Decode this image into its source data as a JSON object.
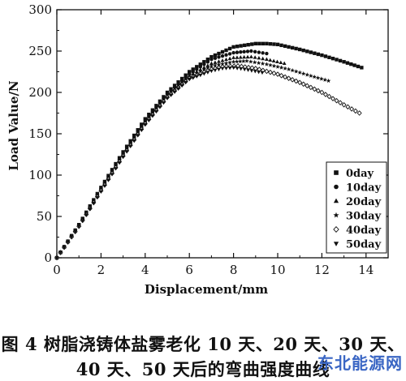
{
  "chart_data": {
    "type": "scatter",
    "xlabel": "Displacement/mm",
    "ylabel": "Load Value/N",
    "xlim": [
      0,
      15
    ],
    "ylim": [
      0,
      300
    ],
    "xticks": [
      0,
      2,
      4,
      6,
      8,
      10,
      12,
      14
    ],
    "yticks": [
      0,
      50,
      100,
      150,
      200,
      250,
      300
    ],
    "legend_position": "bottom-right",
    "grid": false,
    "series": [
      {
        "name": "0day",
        "marker": "square",
        "x": [
          0,
          1,
          2,
          3,
          4,
          5,
          6,
          7,
          8,
          9,
          9.5,
          10,
          11,
          12,
          13,
          13.8
        ],
        "y": [
          0,
          40,
          85,
          128,
          168,
          200,
          225,
          243,
          255,
          259,
          259,
          258,
          252,
          245,
          237,
          230
        ]
      },
      {
        "name": "10day",
        "marker": "circle",
        "x": [
          0,
          1,
          2,
          3,
          4,
          5,
          6,
          7,
          8,
          8.8,
          9.5
        ],
        "y": [
          0,
          40,
          84,
          126,
          165,
          198,
          222,
          240,
          248,
          250,
          247
        ]
      },
      {
        "name": "20day",
        "marker": "triangle-up",
        "x": [
          0,
          1,
          2,
          3,
          4,
          5,
          6,
          7,
          8,
          8.8,
          9.5,
          10.3
        ],
        "y": [
          0,
          39,
          83,
          125,
          164,
          196,
          220,
          235,
          242,
          243,
          240,
          235
        ]
      },
      {
        "name": "30day",
        "marker": "star",
        "x": [
          0,
          1,
          2,
          3,
          4,
          5,
          6,
          7,
          8,
          8.6,
          9.5,
          10.5,
          11.5,
          12.3
        ],
        "y": [
          0,
          39,
          82,
          124,
          163,
          195,
          219,
          232,
          237,
          238,
          234,
          228,
          220,
          214
        ]
      },
      {
        "name": "40day",
        "marker": "diamond-open",
        "x": [
          0,
          1,
          2,
          3,
          4,
          5,
          6,
          7,
          7.5,
          8.2,
          9,
          10,
          11,
          12,
          13,
          13.7
        ],
        "y": [
          0,
          38,
          81,
          123,
          162,
          194,
          217,
          228,
          231,
          232,
          229,
          222,
          212,
          200,
          185,
          175
        ]
      },
      {
        "name": "50day",
        "marker": "triangle-down",
        "x": [
          0,
          1,
          2,
          3,
          4,
          5,
          6,
          7,
          7.5,
          8,
          8.5,
          9.3
        ],
        "y": [
          0,
          38,
          80,
          122,
          161,
          193,
          216,
          226,
          229,
          230,
          228,
          224
        ]
      }
    ]
  },
  "caption": {
    "line1": "图 4   树脂浇铸体盐雾老化 10 天、20 天、30 天、",
    "line2": "40 天、50 天后的弯曲强度曲线"
  },
  "watermark": "东北能源网"
}
